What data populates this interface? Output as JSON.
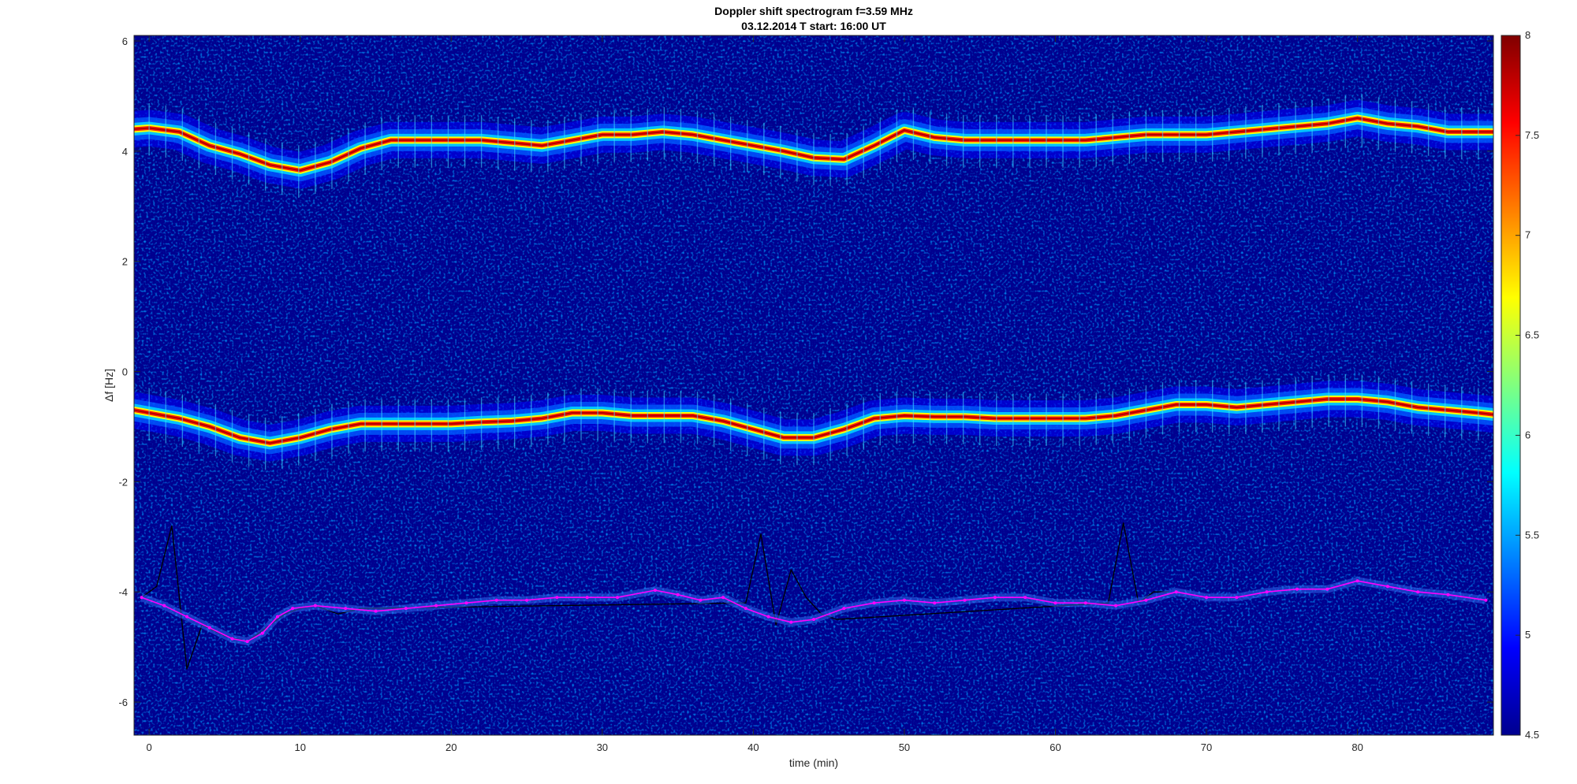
{
  "chart_data": {
    "type": "heatmap",
    "title": "Doppler shift spectrogram f=3.59 MHz",
    "subtitle": "03.12.2014   T start: 16:00 UT",
    "xlabel": "time (min)",
    "ylabel": "Δf [Hz]",
    "xlim": [
      -1,
      89
    ],
    "ylim": [
      -6.6,
      6.1
    ],
    "x_ticks": [
      "0",
      "10",
      "20",
      "30",
      "40",
      "50",
      "60",
      "70",
      "80"
    ],
    "y_ticks": [
      "-6",
      "-4",
      "-2",
      "0",
      "2",
      "4",
      "6"
    ],
    "colorbar": {
      "colormap": "jet",
      "range": [
        4.5,
        8
      ],
      "ticks": [
        "4.5",
        "5",
        "5.5",
        "6",
        "6.5",
        "7",
        "7.5",
        "8"
      ]
    },
    "background_color": "#00008f",
    "bands": [
      {
        "name": "",
        "time": [
          -1,
          0,
          2,
          4,
          6,
          8,
          10,
          12,
          14,
          16,
          18,
          20,
          22,
          24,
          26,
          28,
          30,
          32,
          34,
          36,
          38,
          40,
          42,
          44,
          46,
          48,
          50,
          52,
          54,
          56,
          58,
          60,
          62,
          64,
          66,
          68,
          70,
          72,
          74,
          76,
          78,
          80,
          82,
          84,
          86,
          88,
          89
        ],
        "freq": [
          4.4,
          4.42,
          4.35,
          4.1,
          3.95,
          3.75,
          3.65,
          3.8,
          4.05,
          4.2,
          4.2,
          4.2,
          4.2,
          4.15,
          4.1,
          4.2,
          4.3,
          4.3,
          4.35,
          4.3,
          4.2,
          4.1,
          4.0,
          3.88,
          3.85,
          4.1,
          4.38,
          4.25,
          4.2,
          4.2,
          4.2,
          4.2,
          4.2,
          4.25,
          4.3,
          4.3,
          4.3,
          4.35,
          4.4,
          4.45,
          4.5,
          4.6,
          4.5,
          4.45,
          4.35,
          4.35,
          4.35
        ]
      },
      {
        "name": "",
        "time": [
          -1,
          0,
          2,
          4,
          6,
          8,
          10,
          12,
          14,
          16,
          18,
          20,
          22,
          24,
          26,
          28,
          30,
          32,
          34,
          36,
          38,
          40,
          42,
          44,
          46,
          48,
          50,
          52,
          54,
          56,
          58,
          60,
          62,
          64,
          66,
          68,
          70,
          72,
          74,
          76,
          78,
          80,
          82,
          84,
          86,
          88,
          89
        ],
        "freq": [
          -0.7,
          -0.75,
          -0.85,
          -1.0,
          -1.2,
          -1.3,
          -1.2,
          -1.05,
          -0.95,
          -0.95,
          -0.95,
          -0.95,
          -0.92,
          -0.9,
          -0.85,
          -0.75,
          -0.75,
          -0.8,
          -0.8,
          -0.8,
          -0.9,
          -1.05,
          -1.2,
          -1.2,
          -1.05,
          -0.85,
          -0.8,
          -0.82,
          -0.82,
          -0.85,
          -0.85,
          -0.85,
          -0.85,
          -0.8,
          -0.7,
          -0.6,
          -0.6,
          -0.65,
          -0.6,
          -0.55,
          -0.5,
          -0.5,
          -0.55,
          -0.65,
          -0.7,
          -0.75,
          -0.78
        ]
      }
    ],
    "series": [
      {
        "name": "",
        "color": "#ff00ff",
        "time": [
          -0.5,
          1,
          2.5,
          4,
          5.5,
          6.5,
          7.5,
          8.5,
          9.5,
          11,
          13,
          15,
          17,
          19,
          21,
          23,
          25,
          27,
          29,
          31,
          33.5,
          35,
          36.5,
          38,
          39.5,
          41,
          42.5,
          44,
          46,
          48,
          50,
          52,
          54,
          56,
          58,
          60,
          62,
          64,
          66,
          68,
          70,
          72,
          74,
          76,
          78,
          80,
          82,
          84,
          86,
          88.5
        ],
        "freq": [
          -4.1,
          -4.25,
          -4.45,
          -4.65,
          -4.85,
          -4.9,
          -4.75,
          -4.45,
          -4.3,
          -4.25,
          -4.3,
          -4.35,
          -4.3,
          -4.25,
          -4.2,
          -4.15,
          -4.15,
          -4.1,
          -4.1,
          -4.1,
          -3.97,
          -4.05,
          -4.15,
          -4.1,
          -4.3,
          -4.45,
          -4.55,
          -4.5,
          -4.3,
          -4.2,
          -4.15,
          -4.2,
          -4.15,
          -4.1,
          -4.1,
          -4.2,
          -4.2,
          -4.25,
          -4.15,
          -4.0,
          -4.1,
          -4.1,
          -4.0,
          -3.95,
          -3.95,
          -3.8,
          -3.9,
          -4.0,
          -4.05,
          -4.15
        ]
      },
      {
        "name": "",
        "color": "#000000",
        "time": [
          -0.5,
          0.5,
          1.5,
          2.5,
          3.5,
          5,
          6.5,
          8,
          9,
          10,
          11,
          12.5,
          14,
          39.5,
          40.5,
          41.5,
          42.5,
          43.5,
          44.5,
          45.5,
          63.5,
          64.5,
          65.5,
          66.5,
          67.5
        ],
        "freq": [
          -4.1,
          -3.9,
          -2.8,
          -5.4,
          -4.6,
          -4.8,
          -4.9,
          -4.6,
          -4.4,
          -4.3,
          -4.25,
          -4.4,
          -4.3,
          -4.2,
          -2.95,
          -4.6,
          -3.6,
          -4.1,
          -4.4,
          -4.5,
          -4.2,
          -2.75,
          -4.2,
          -4.0,
          -4.0
        ]
      }
    ]
  }
}
